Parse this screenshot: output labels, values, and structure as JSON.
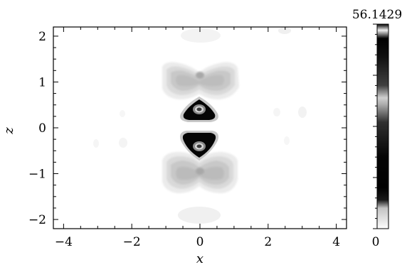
{
  "chart_data": {
    "type": "heatmap",
    "xlabel": "x",
    "ylabel": "z",
    "xlim": [
      -4.3,
      4.3
    ],
    "ylim": [
      -2.2,
      2.2
    ],
    "x_ticks": [
      -4,
      -2,
      0,
      2,
      4
    ],
    "x_tick_labels": [
      "−4",
      "−2",
      "0",
      "2",
      "4"
    ],
    "y_ticks": [
      2,
      1,
      0,
      -1,
      -2
    ],
    "y_tick_labels": [
      "2",
      "1",
      "0",
      "−1",
      "−2"
    ],
    "colorbar": {
      "min": 0,
      "max": 56.1429,
      "min_label": "0",
      "max_label": "56.1429",
      "colormap": "gray_r"
    },
    "features": [
      {
        "shape": "triangle-up",
        "center": [
          0,
          0.35
        ],
        "peak_value": 56.1429
      },
      {
        "shape": "triangle-down",
        "center": [
          0,
          -0.35
        ],
        "peak_value": 56.1429
      },
      {
        "shape": "bowtie",
        "center": [
          0,
          1.2
        ],
        "value": 12
      },
      {
        "shape": "bowtie",
        "center": [
          0,
          -1.2
        ],
        "value": 12
      },
      {
        "shape": "blob",
        "center": [
          0,
          2.0
        ],
        "value": 2
      },
      {
        "shape": "blob",
        "center": [
          0,
          -1.9
        ],
        "value": 2
      }
    ],
    "grid": false
  }
}
